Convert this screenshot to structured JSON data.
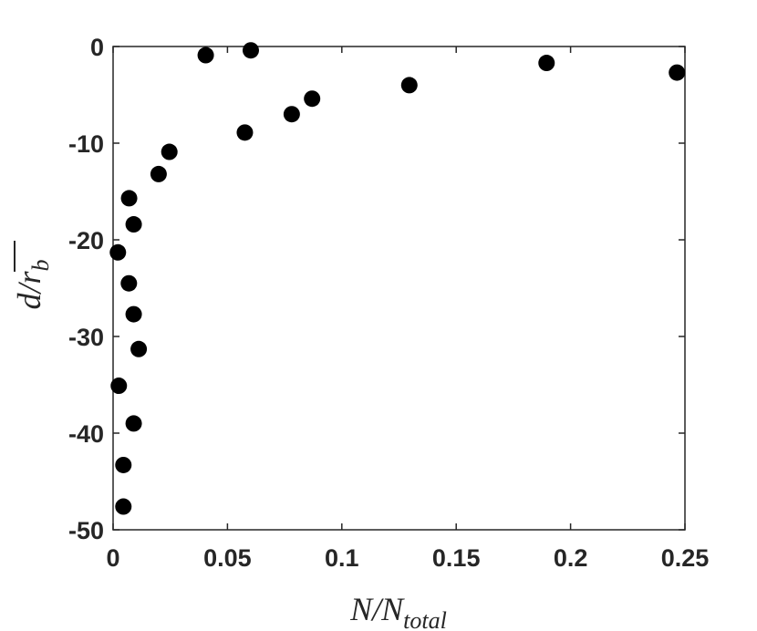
{
  "chart_data": {
    "type": "scatter",
    "title": "",
    "xlabel": "N/N_total",
    "xlabel_parts": {
      "main": "N/N",
      "sub": "total"
    },
    "ylabel": "d/r̄_b",
    "ylabel_parts": {
      "main": "d/",
      "r": "r",
      "sub": "b"
    },
    "xlim": [
      0,
      0.25
    ],
    "ylim": [
      -50,
      0
    ],
    "xticks": [
      0,
      0.05,
      0.1,
      0.15,
      0.2,
      0.25
    ],
    "xtick_labels": [
      "0",
      "0.05",
      "0.1",
      "0.15",
      "0.2",
      "0.25"
    ],
    "yticks": [
      0,
      -10,
      -20,
      -30,
      -40,
      -50
    ],
    "ytick_labels": [
      "0",
      "-10",
      "-20",
      "-30",
      "-40",
      "-50"
    ],
    "grid": false,
    "marker_color": "#000000",
    "axis_color": "#262626",
    "series": [
      {
        "x": [
          0.0405,
          0.0602,
          0.0576,
          0.0781,
          0.087,
          0.1295,
          0.1895,
          0.2465,
          0.0246,
          0.0199,
          0.007,
          0.009,
          0.0021,
          0.0069,
          0.009,
          0.0112,
          0.0025,
          0.009,
          0.0045,
          0.0045
        ],
        "y": [
          -0.9,
          -0.4,
          -8.9,
          -7.0,
          -5.4,
          -4.0,
          -1.7,
          -2.7,
          -10.9,
          -13.2,
          -15.7,
          -18.4,
          -21.3,
          -24.5,
          -27.7,
          -31.3,
          -35.1,
          -39.0,
          -43.3,
          -47.6
        ]
      }
    ]
  }
}
